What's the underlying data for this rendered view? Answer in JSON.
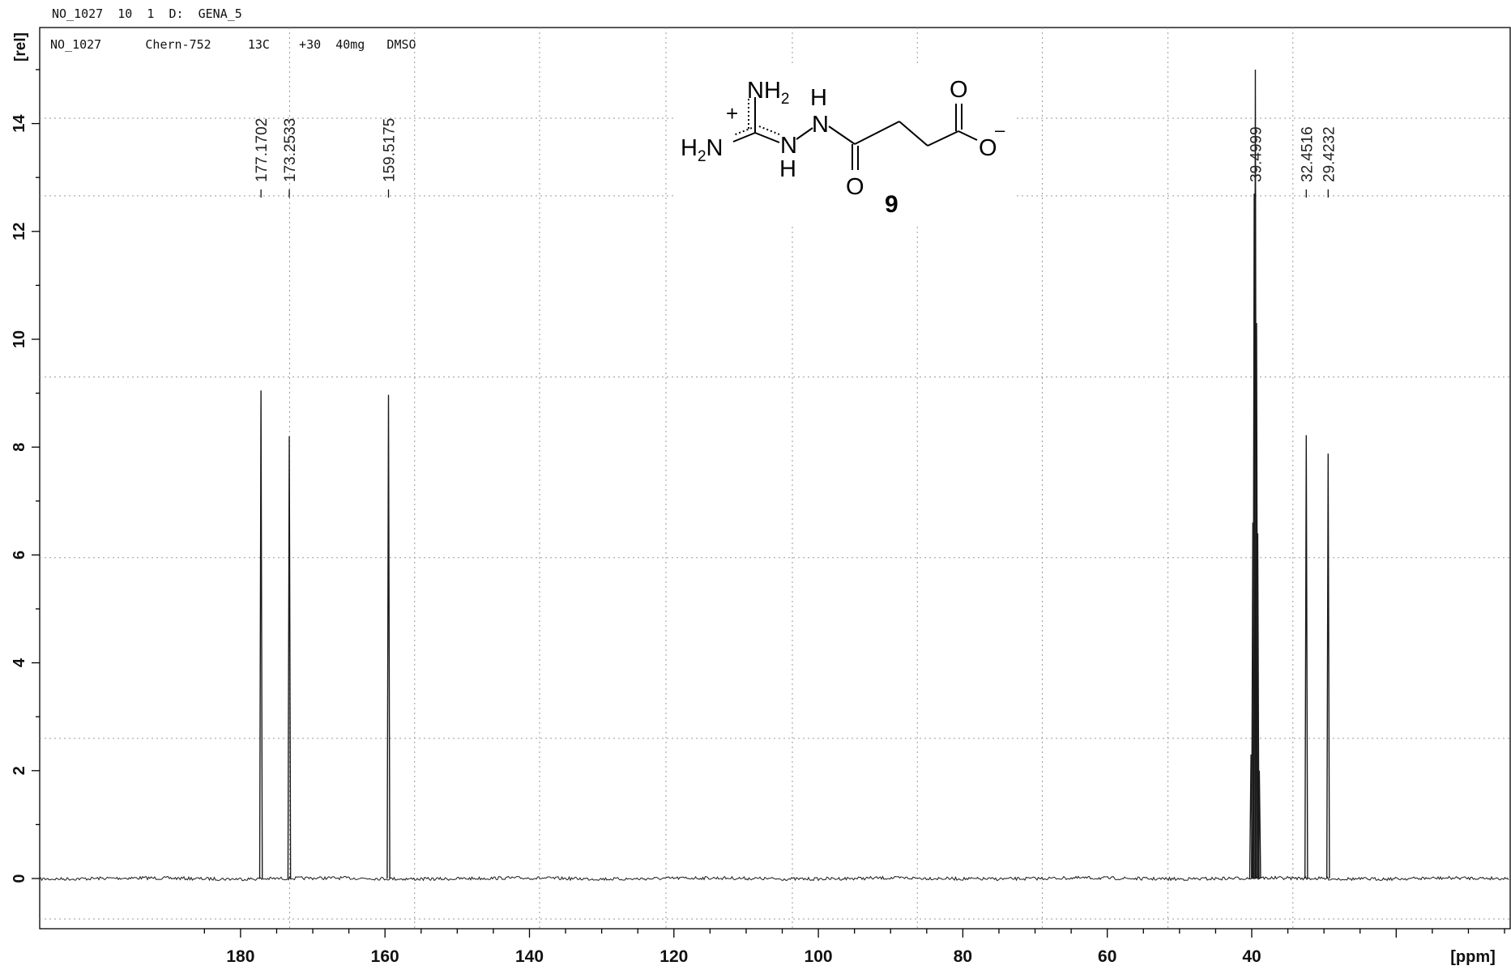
{
  "header": {
    "top_line": "NO_1027  10  1  D:  GENA_5",
    "inner_line": "NO_1027      Chern-752     13C    +30  40mg   DMSO"
  },
  "structure": {
    "label_nh2": "NH",
    "label_nh2_sub": "2",
    "label_plus": "+",
    "label_h2n": "H",
    "label_h2n_sub": "2",
    "label_h2n_n": "N",
    "label_nh_top_h": "H",
    "label_nh_top_n": "N",
    "label_nh_bottom_n": "N",
    "label_nh_bottom_h": "H",
    "label_o_amide": "O",
    "label_o_acid": "O",
    "label_o_anion": "O",
    "label_minus": "–",
    "compound_number": "9"
  },
  "chart_data": {
    "type": "line",
    "title": "",
    "xlabel": "[ppm]",
    "ylabel": "[rel]",
    "xlim": [
      189,
      -2
    ],
    "ylim": [
      -1,
      15
    ],
    "x_ticks": [
      180,
      160,
      140,
      120,
      100,
      80,
      60,
      40
    ],
    "y_ticks": [
      0,
      2,
      4,
      6,
      8,
      10,
      12,
      14
    ],
    "grid": true,
    "peaks": [
      {
        "ppm": 177.1702,
        "height": 9.05,
        "label": "177.1702"
      },
      {
        "ppm": 173.2533,
        "height": 8.2,
        "label": "173.2533"
      },
      {
        "ppm": 159.5175,
        "height": 8.97,
        "label": "159.5175"
      },
      {
        "ppm": 39.4999,
        "height": 15.0,
        "label": "39.4999"
      },
      {
        "ppm": 32.4516,
        "height": 8.22,
        "label": "32.4516"
      },
      {
        "ppm": 29.4232,
        "height": 7.88,
        "label": "29.4232"
      }
    ],
    "solvent_multiplet": [
      {
        "ppm": 40.1,
        "height": 2.3
      },
      {
        "ppm": 39.85,
        "height": 6.6
      },
      {
        "ppm": 39.66,
        "height": 12.7
      },
      {
        "ppm": 39.33,
        "height": 10.3
      },
      {
        "ppm": 39.17,
        "height": 6.4
      },
      {
        "ppm": 38.95,
        "height": 2.0
      }
    ],
    "colors": {
      "trace": "#1a1a1a",
      "grid": "#9a9a9a",
      "axis": "#000000"
    }
  }
}
